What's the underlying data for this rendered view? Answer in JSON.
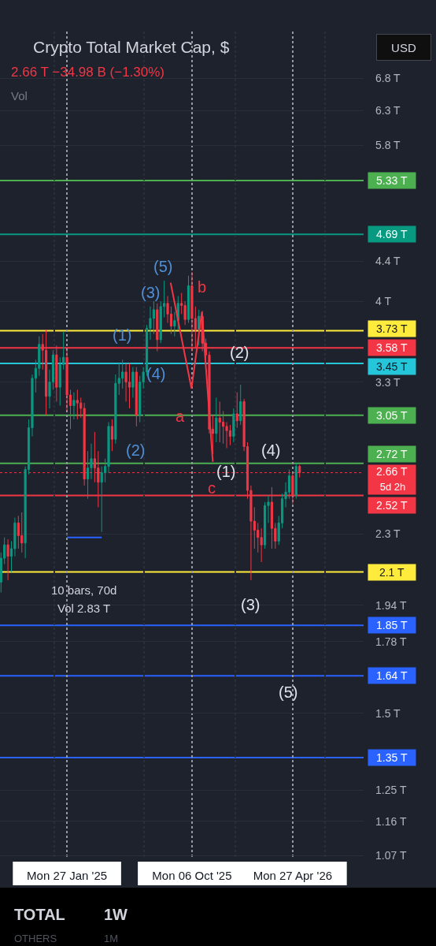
{
  "chart_data": {
    "type": "candlestick",
    "title": "Crypto Total Market Cap, $",
    "subtitle": "2.66 T −34.98 B (−1.30%)",
    "x": [
      "2024-09-16",
      "2024-09-23",
      "2024-09-30",
      "2024-10-07",
      "2024-10-14",
      "2024-10-21",
      "2024-10-28",
      "2024-11-04",
      "2024-11-11",
      "2024-11-18",
      "2024-11-25",
      "2024-12-02",
      "2024-12-09",
      "2024-12-16",
      "2024-12-23",
      "2024-12-30",
      "2025-01-06",
      "2025-01-13",
      "2025-01-20",
      "2025-01-27",
      "2025-02-03",
      "2025-02-10",
      "2025-02-17",
      "2025-02-24",
      "2025-03-03",
      "2025-03-10",
      "2025-03-17",
      "2025-03-24",
      "2025-03-31",
      "2025-04-07",
      "2025-04-14",
      "2025-04-21",
      "2025-04-28",
      "2025-05-05",
      "2025-05-12",
      "2025-05-19",
      "2025-05-26",
      "2025-06-02",
      "2025-06-09",
      "2025-06-16",
      "2025-06-23",
      "2025-06-30",
      "2025-07-07",
      "2025-07-14",
      "2025-07-21",
      "2025-07-28",
      "2025-08-04",
      "2025-08-11",
      "2025-08-18",
      "2025-08-25",
      "2025-09-01",
      "2025-09-08",
      "2025-09-15",
      "2025-09-22",
      "2025-09-29",
      "2025-10-06",
      "2025-10-13",
      "2025-10-20",
      "2025-10-27",
      "2025-11-03",
      "2025-11-10",
      "2025-11-17",
      "2025-11-24",
      "2025-12-01",
      "2025-12-08",
      "2025-12-15",
      "2025-12-22",
      "2025-12-29",
      "2026-01-05",
      "2026-01-12",
      "2026-01-19",
      "2026-01-26",
      "2026-02-02",
      "2026-02-09",
      "2026-02-16",
      "2026-02-23",
      "2026-03-02",
      "2026-03-09",
      "2026-03-16",
      "2026-03-23",
      "2026-03-30",
      "2026-04-06",
      "2026-04-13",
      "2026-04-20",
      "2026-04-27",
      "2026-05-04",
      "2026-05-11"
    ],
    "ohlc": [
      [
        2.05,
        2.2,
        2.0,
        2.17
      ],
      [
        2.17,
        2.28,
        2.14,
        2.24
      ],
      [
        2.24,
        2.27,
        2.06,
        2.18
      ],
      [
        2.18,
        2.26,
        2.1,
        2.22
      ],
      [
        2.22,
        2.39,
        2.18,
        2.36
      ],
      [
        2.36,
        2.4,
        2.22,
        2.29
      ],
      [
        2.29,
        2.42,
        2.2,
        2.25
      ],
      [
        2.25,
        2.7,
        2.17,
        2.68
      ],
      [
        2.68,
        3.02,
        2.65,
        2.96
      ],
      [
        2.96,
        3.36,
        2.9,
        3.33
      ],
      [
        3.33,
        3.48,
        3.22,
        3.41
      ],
      [
        3.41,
        3.68,
        3.35,
        3.61
      ],
      [
        3.61,
        3.7,
        3.4,
        3.56
      ],
      [
        3.56,
        3.74,
        3.05,
        3.19
      ],
      [
        3.19,
        3.4,
        3.1,
        3.3
      ],
      [
        3.3,
        3.56,
        3.24,
        3.52
      ],
      [
        3.52,
        3.6,
        3.15,
        3.26
      ],
      [
        3.26,
        3.5,
        3.12,
        3.44
      ],
      [
        3.44,
        3.72,
        3.4,
        3.5
      ],
      [
        3.5,
        3.56,
        3.08,
        3.2
      ],
      [
        3.2,
        3.24,
        2.95,
        3.12
      ],
      [
        3.12,
        3.22,
        3.02,
        3.16
      ],
      [
        3.16,
        3.24,
        3.02,
        3.14
      ],
      [
        3.14,
        3.18,
        3.03,
        3.1
      ],
      [
        3.1,
        3.14,
        2.58,
        2.62
      ],
      [
        2.62,
        2.8,
        2.5,
        2.69
      ],
      [
        2.69,
        2.85,
        2.62,
        2.75
      ],
      [
        2.75,
        2.93,
        2.6,
        2.69
      ],
      [
        2.69,
        2.8,
        2.45,
        2.6
      ],
      [
        2.6,
        2.7,
        2.31,
        2.66
      ],
      [
        2.66,
        2.75,
        2.6,
        2.7
      ],
      [
        2.7,
        3.0,
        2.66,
        2.97
      ],
      [
        2.97,
        3.02,
        2.8,
        2.88
      ],
      [
        2.88,
        3.36,
        2.85,
        3.29
      ],
      [
        3.29,
        3.45,
        3.2,
        3.33
      ],
      [
        3.33,
        3.48,
        3.25,
        3.38
      ],
      [
        3.38,
        3.45,
        3.15,
        3.3
      ],
      [
        3.3,
        3.45,
        3.1,
        3.26
      ],
      [
        3.26,
        3.42,
        3.18,
        3.38
      ],
      [
        3.38,
        3.42,
        2.97,
        3.05
      ],
      [
        3.05,
        3.35,
        3.0,
        3.3
      ],
      [
        3.3,
        3.42,
        3.25,
        3.38
      ],
      [
        3.38,
        3.78,
        3.35,
        3.75
      ],
      [
        3.75,
        3.95,
        3.65,
        3.84
      ],
      [
        3.84,
        4.0,
        3.7,
        3.92
      ],
      [
        3.92,
        3.98,
        3.55,
        3.65
      ],
      [
        3.65,
        4.0,
        3.62,
        3.95
      ],
      [
        3.95,
        4.2,
        3.85,
        3.98
      ],
      [
        3.98,
        4.05,
        3.8,
        3.88
      ],
      [
        3.88,
        3.95,
        3.7,
        3.77
      ],
      [
        3.77,
        3.9,
        3.68,
        3.82
      ],
      [
        3.82,
        4.05,
        3.74,
        3.98
      ],
      [
        3.98,
        4.08,
        3.88,
        3.96
      ],
      [
        3.96,
        4.0,
        3.78,
        3.83
      ],
      [
        3.83,
        4.25,
        3.8,
        4.15
      ],
      [
        4.15,
        4.29,
        3.55,
        3.84
      ],
      [
        3.84,
        3.95,
        3.58,
        3.74
      ],
      [
        3.74,
        3.92,
        3.6,
        3.86
      ],
      [
        3.86,
        3.91,
        3.55,
        3.62
      ],
      [
        3.62,
        3.66,
        3.45,
        3.52
      ],
      [
        3.52,
        3.55,
        2.92,
        2.95
      ],
      [
        2.95,
        3.05,
        2.78,
        2.92
      ],
      [
        2.92,
        3.18,
        2.86,
        3.03
      ],
      [
        3.03,
        3.15,
        2.86,
        3.0
      ],
      [
        3.0,
        3.08,
        2.85,
        2.97
      ],
      [
        2.97,
        3.0,
        2.82,
        2.94
      ],
      [
        2.94,
        2.98,
        2.84,
        2.9
      ],
      [
        2.9,
        3.1,
        2.86,
        3.06
      ],
      [
        3.06,
        3.22,
        2.96,
        3.01
      ],
      [
        3.01,
        3.28,
        2.98,
        3.15
      ],
      [
        3.15,
        3.17,
        2.8,
        2.83
      ],
      [
        2.83,
        2.86,
        2.5,
        2.55
      ],
      [
        2.55,
        2.58,
        2.06,
        2.37
      ],
      [
        2.37,
        2.45,
        2.22,
        2.32
      ],
      [
        2.32,
        2.36,
        2.2,
        2.28
      ],
      [
        2.28,
        2.33,
        2.15,
        2.24
      ],
      [
        2.24,
        2.48,
        2.22,
        2.46
      ],
      [
        2.46,
        2.52,
        2.36,
        2.48
      ],
      [
        2.48,
        2.57,
        2.22,
        2.33
      ],
      [
        2.33,
        2.36,
        2.22,
        2.26
      ],
      [
        2.26,
        2.4,
        2.24,
        2.36
      ],
      [
        2.36,
        2.53,
        2.33,
        2.5
      ],
      [
        2.5,
        2.6,
        2.45,
        2.54
      ],
      [
        2.54,
        2.68,
        2.5,
        2.64
      ],
      [
        2.64,
        2.66,
        2.47,
        2.52
      ],
      [
        2.52,
        2.72,
        2.5,
        2.7
      ],
      [
        2.7,
        2.71,
        2.63,
        2.66
      ]
    ],
    "colors": [
      "#089981",
      "#089981",
      "#f23645",
      "#089981",
      "#089981",
      "#f23645",
      "#f23645",
      "#089981",
      "#089981",
      "#089981",
      "#089981",
      "#089981",
      "#f23645",
      "#f23645",
      "#089981",
      "#089981",
      "#f23645",
      "#089981",
      "#089981",
      "#f23645",
      "#f23645",
      "#089981",
      "#f23645",
      "#f23645",
      "#f23645",
      "#089981",
      "#089981",
      "#f23645",
      "#f23645",
      "#089981",
      "#089981",
      "#089981",
      "#f23645",
      "#089981",
      "#089981",
      "#089981",
      "#f23645",
      "#f23645",
      "#089981",
      "#f23645",
      "#089981",
      "#089981",
      "#089981",
      "#089981",
      "#089981",
      "#f23645",
      "#089981",
      "#089981",
      "#f23645",
      "#f23645",
      "#089981",
      "#089981",
      "#f23645",
      "#f23645",
      "#089981",
      "#f23645",
      "#f23645",
      "#089981",
      "#f23645",
      "#f23645",
      "#f23645",
      "#f23645",
      "#089981",
      "#f23645",
      "#f23645",
      "#f23645",
      "#f23645",
      "#089981",
      "#f23645",
      "#089981",
      "#f23645",
      "#f23645",
      "#f23645",
      "#f23645",
      "#f23645",
      "#f23645",
      "#089981",
      "#089981",
      "#f23645",
      "#f23645",
      "#089981",
      "#089981",
      "#089981",
      "#089981",
      "#f23645",
      "#089981",
      "#f23645"
    ],
    "series": [
      {
        "type": "line",
        "color": "#f23645",
        "x": [
          "2025-08-24",
          "2025-10-05",
          "2025-10-26",
          "2025-11-17"
        ],
        "values": [
          4.18,
          3.25,
          3.9,
          2.73
        ]
      },
      {
        "type": "line",
        "color": "#2962ff",
        "x": [
          "2025-01-27",
          "2025-04-07"
        ],
        "values": [
          2.28,
          2.28
        ]
      }
    ],
    "log": true,
    "xlim": [
      "2024-09-14",
      "2026-09-17"
    ],
    "ylim": [
      1.06,
      7.6
    ],
    "xticks": [
      {
        "value": "2025-01-01",
        "label": null
      },
      {
        "value": "2025-01-27",
        "label": "Mon 27 Jan '25"
      },
      {
        "value": "2025-07-01",
        "label": null
      },
      {
        "value": "2025-10-06",
        "label": "Mon 06 Oct '25"
      },
      {
        "value": "2026-01-01",
        "label": null
      },
      {
        "value": "2026-04-27",
        "label": "Mon 27 Apr '26"
      },
      {
        "value": "2026-07-01",
        "label": null
      }
    ],
    "yticks": [
      {
        "value": 6.8,
        "label": "6.8 T"
      },
      {
        "value": 6.3,
        "label": "6.3 T"
      },
      {
        "value": 5.8,
        "label": "5.8 T"
      },
      {
        "value": 4.4,
        "label": "4.4 T"
      },
      {
        "value": 4,
        "label": "4 T"
      },
      {
        "value": 3.3,
        "label": "3.3 T"
      },
      {
        "value": 2.3,
        "label": "2.3 T"
      },
      {
        "value": 1.94,
        "label": "1.94 T"
      },
      {
        "value": 1.78,
        "label": "1.78 T"
      },
      {
        "value": 1.5,
        "label": "1.5 T"
      },
      {
        "value": 1.25,
        "label": "1.25 T"
      },
      {
        "value": 1.16,
        "label": "1.16 T"
      },
      {
        "value": 1.07,
        "label": "1.07 T"
      }
    ],
    "grid": true,
    "ref_lines": [
      {
        "axis": "y",
        "value": 5.33,
        "label": "5.33 T",
        "color": "#4caf50"
      },
      {
        "axis": "y",
        "value": 4.69,
        "label": "4.69 T",
        "color": "#089981"
      },
      {
        "axis": "y",
        "value": 3.73,
        "label": "3.73 T",
        "color": "#ffeb3b"
      },
      {
        "axis": "y",
        "value": 3.58,
        "label": "3.58 T",
        "color": "#f23645"
      },
      {
        "axis": "y",
        "value": 3.45,
        "label": "3.45 T",
        "color": "#26c6da"
      },
      {
        "axis": "y",
        "value": 3.05,
        "label": "3.05 T",
        "color": "#4caf50"
      },
      {
        "axis": "y",
        "value": 2.72,
        "label": "2.72 T",
        "color": "#4caf50"
      },
      {
        "axis": "y",
        "value": 2.66,
        "label": "2.66 T",
        "color": "#f23645",
        "line_style": "dotted"
      },
      {
        "axis": "y",
        "value": 2.52,
        "label": "2.52 T",
        "color": "#f23645"
      },
      {
        "axis": "y",
        "value": 2.1,
        "label": "2.1 T",
        "color": "#ffeb3b"
      },
      {
        "axis": "y",
        "value": 1.85,
        "label": "1.85 T",
        "color": "#2962ff"
      },
      {
        "axis": "y",
        "value": 1.64,
        "label": "1.64 T",
        "color": "#2962ff"
      },
      {
        "axis": "y",
        "value": 1.35,
        "label": "1.35 T",
        "color": "#2962ff"
      }
    ],
    "annotations": [
      "Vol",
      "USD",
      "(1)",
      "(2)",
      "(3)",
      "(4)",
      "(5)",
      "a",
      "b",
      "c",
      "(1)",
      "(2)",
      "(3)",
      "(4)",
      "(5)",
      "10 bars, 70d",
      "Vol 2.83 T",
      "5d 2h",
      "TOTAL",
      "1W",
      "OTHERS",
      "1M"
    ]
  }
}
